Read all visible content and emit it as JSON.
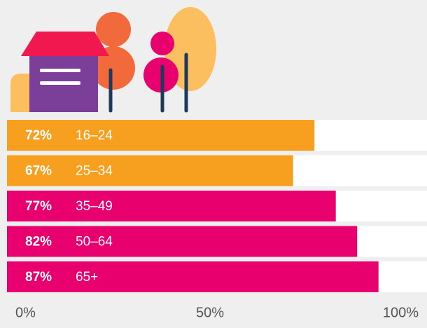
{
  "chart_data": {
    "type": "bar",
    "orientation": "horizontal",
    "categories": [
      "16–24",
      "25–34",
      "35–49",
      "50–64",
      "65+"
    ],
    "values": [
      72,
      67,
      77,
      82,
      87
    ],
    "value_labels": [
      "72%",
      "67%",
      "77%",
      "82%",
      "87%"
    ],
    "colors": [
      "#f7a01f",
      "#f7a01f",
      "#e8006e",
      "#e8006e",
      "#e8006e"
    ],
    "xlim": [
      0,
      100
    ],
    "xticks": [
      {
        "value": 0,
        "label": "0%"
      },
      {
        "value": 50,
        "label": "50%"
      },
      {
        "value": 100,
        "label": "100%"
      }
    ]
  }
}
